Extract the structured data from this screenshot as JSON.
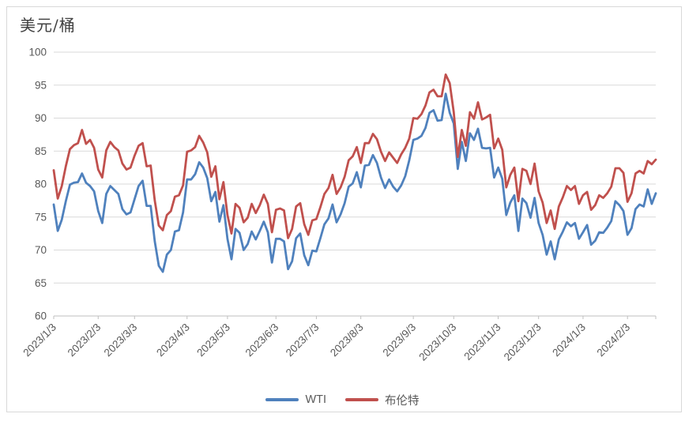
{
  "title": "美元/桶",
  "chart_data": {
    "type": "line",
    "title": "美元/桶",
    "y_axis_title": "美元/桶",
    "ylim": [
      60,
      100
    ],
    "ytick_step": 5,
    "ytick_labels": [
      "100",
      "95",
      "90",
      "85",
      "80",
      "75",
      "70",
      "65",
      "60"
    ],
    "grid": true,
    "legend_position": "bottom",
    "axis_text_color": "#595959",
    "gridline_color": "#d9d9d9",
    "axis_line_color": "#bfbfbf",
    "x_tick_labels": [
      "2023/1/3",
      "2023/2/3",
      "2023/3/3",
      "2023/4/3",
      "2023/5/3",
      "2023/6/3",
      "2023/7/3",
      "2023/8/3",
      "2023/9/3",
      "2023/10/3",
      "2023/11/3",
      "2023/12/3",
      "2024/1/3",
      "2024/2/3"
    ],
    "x_tick_indices": [
      0,
      11,
      20,
      33,
      43,
      55,
      65,
      76,
      89,
      99,
      110,
      120,
      131,
      142
    ],
    "series": [
      {
        "name": "WTI",
        "color": "#4f81bd",
        "values": [
          76.9,
          72.9,
          74.6,
          77.4,
          79.9,
          80.2,
          80.3,
          81.6,
          80.2,
          79.7,
          78.9,
          75.9,
          74.1,
          78.5,
          79.7,
          79.1,
          78.5,
          76.2,
          75.4,
          75.7,
          77.7,
          79.7,
          80.5,
          76.7,
          76.7,
          71.3,
          67.6,
          66.7,
          69.3,
          70.0,
          72.8,
          73.0,
          75.7,
          80.7,
          80.7,
          81.5,
          83.3,
          82.5,
          80.9,
          77.4,
          78.8,
          74.3,
          76.8,
          71.7,
          68.6,
          73.2,
          72.6,
          70.0,
          70.9,
          72.8,
          71.6,
          72.9,
          74.3,
          72.7,
          68.1,
          71.7,
          71.7,
          71.3,
          67.1,
          68.3,
          71.8,
          72.5,
          69.2,
          67.7,
          69.9,
          69.8,
          71.8,
          73.9,
          74.8,
          76.9,
          74.2,
          75.4,
          77.1,
          79.6,
          80.1,
          81.8,
          79.5,
          82.8,
          82.9,
          84.4,
          83.2,
          81.0,
          79.4,
          80.7,
          79.6,
          78.9,
          79.8,
          81.2,
          83.6,
          86.7,
          86.9,
          87.3,
          88.5,
          90.8,
          91.2,
          89.6,
          89.7,
          93.7,
          90.8,
          89.2,
          82.3,
          86.4,
          83.5,
          87.7,
          86.7,
          88.4,
          85.5,
          85.4,
          85.5,
          81.0,
          82.5,
          80.8,
          75.3,
          77.2,
          78.3,
          72.9,
          77.8,
          77.1,
          74.9,
          77.9,
          74.1,
          72.3,
          69.3,
          71.3,
          68.6,
          71.6,
          72.8,
          74.2,
          73.6,
          74.1,
          71.7,
          72.7,
          73.8,
          70.8,
          71.4,
          72.7,
          72.6,
          73.4,
          74.4,
          77.4,
          76.8,
          75.9,
          72.3,
          73.3,
          76.2,
          76.9,
          76.6,
          79.2,
          77.0,
          78.6
        ]
      },
      {
        "name": "布伦特",
        "color": "#c0504d",
        "values": [
          82.1,
          77.8,
          79.7,
          82.7,
          85.3,
          85.9,
          86.2,
          88.2,
          86.1,
          86.7,
          85.5,
          82.2,
          81.0,
          85.1,
          86.4,
          85.6,
          85.1,
          83.1,
          82.2,
          82.5,
          84.3,
          85.8,
          86.2,
          82.7,
          82.8,
          77.5,
          73.7,
          73.0,
          75.3,
          75.9,
          78.1,
          78.3,
          79.8,
          84.9,
          85.1,
          85.6,
          87.3,
          86.3,
          84.8,
          81.1,
          82.7,
          77.7,
          80.3,
          75.3,
          72.5,
          77.0,
          76.4,
          74.2,
          74.9,
          77.0,
          75.6,
          76.8,
          78.4,
          77.0,
          72.7,
          76.1,
          76.3,
          76.0,
          71.8,
          73.2,
          76.6,
          77.1,
          73.9,
          72.3,
          74.5,
          74.7,
          76.5,
          78.5,
          79.4,
          81.4,
          78.5,
          79.5,
          81.1,
          83.6,
          84.2,
          85.6,
          83.2,
          86.2,
          86.2,
          87.6,
          86.8,
          84.9,
          83.5,
          84.8,
          84.0,
          83.2,
          84.5,
          85.5,
          86.9,
          90.0,
          89.9,
          90.6,
          91.9,
          93.9,
          94.3,
          93.3,
          93.3,
          96.6,
          95.3,
          90.9,
          84.1,
          88.2,
          85.8,
          90.9,
          89.9,
          92.4,
          89.8,
          90.1,
          90.5,
          85.4,
          86.9,
          85.2,
          79.5,
          81.4,
          82.5,
          77.4,
          82.3,
          82.0,
          80.0,
          83.1,
          78.9,
          77.2,
          74.1,
          76.0,
          73.2,
          76.6,
          78.0,
          79.7,
          79.1,
          79.7,
          77.0,
          78.3,
          78.8,
          76.1,
          76.8,
          78.3,
          77.9,
          78.6,
          79.6,
          82.4,
          82.4,
          81.7,
          77.3,
          78.6,
          81.6,
          82.0,
          81.6,
          83.5,
          83.0,
          83.7
        ]
      }
    ]
  }
}
